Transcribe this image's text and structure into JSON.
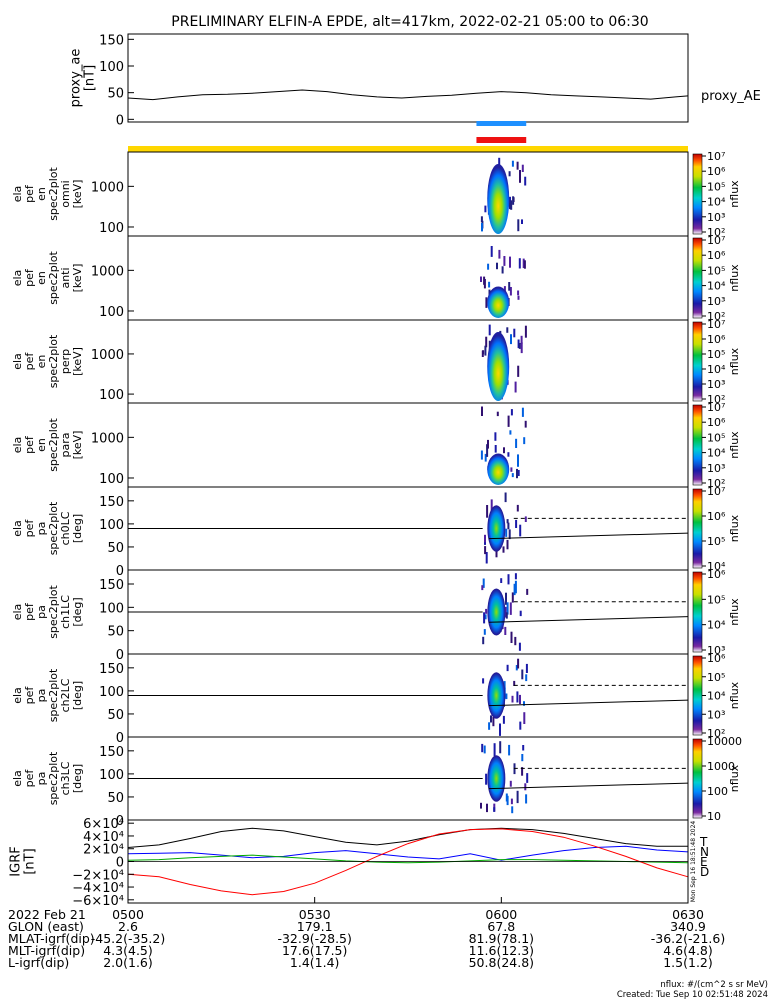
{
  "title": "PRELIMINARY ELFIN-A EPDE, alt=417km, 2022-02-21 05:00 to 06:30",
  "chart_data": [
    {
      "type": "line",
      "panel": "proxy_ae",
      "ylabel_lines": [
        "proxy_ae",
        "[nT]"
      ],
      "yticks": [
        "0",
        "50",
        "100",
        "150"
      ],
      "ylim": [
        -5,
        160
      ],
      "series": [
        {
          "name": "proxy_AE",
          "x": [
            0,
            4,
            8,
            12,
            16,
            20,
            24,
            28,
            32,
            36,
            40,
            44,
            48,
            52,
            56,
            60,
            64,
            68,
            72,
            76,
            80,
            84,
            88,
            90
          ],
          "values": [
            40,
            37,
            42,
            46,
            47,
            49,
            52,
            55,
            52,
            46,
            42,
            40,
            43,
            45,
            49,
            52,
            50,
            46,
            44,
            42,
            40,
            38,
            42,
            44
          ]
        }
      ]
    },
    {
      "type": "heatmap",
      "panel": "energy_spectrograms",
      "x_range_minutes": [
        0,
        90
      ],
      "panels": [
        {
          "ylabel_lines": [
            "ela",
            "pef",
            "en",
            "spec2plot",
            "omni",
            "[keV]"
          ],
          "yticks": [
            "100",
            "1000"
          ],
          "ylim": [
            60,
            7000
          ],
          "colorbar_label": "nflux",
          "colorbar_ticks": [
            "10²",
            "10³",
            "10⁴",
            "10⁵",
            "10⁶",
            "10⁷"
          ]
        },
        {
          "ylabel_lines": [
            "ela",
            "pef",
            "en",
            "spec2plot",
            "anti",
            "[keV]"
          ],
          "yticks": [
            "100",
            "1000"
          ],
          "ylim": [
            60,
            7000
          ],
          "colorbar_label": "nflux",
          "colorbar_ticks": [
            "10²",
            "10³",
            "10⁴",
            "10⁵",
            "10⁶",
            "10⁷"
          ]
        },
        {
          "ylabel_lines": [
            "ela",
            "pef",
            "en",
            "spec2plot",
            "perp",
            "[keV]"
          ],
          "yticks": [
            "100",
            "1000"
          ],
          "ylim": [
            60,
            7000
          ],
          "colorbar_label": "nflux",
          "colorbar_ticks": [
            "10²",
            "10³",
            "10⁴",
            "10⁵",
            "10⁶",
            "10⁷"
          ]
        },
        {
          "ylabel_lines": [
            "ela",
            "pef",
            "en",
            "spec2plot",
            "para",
            "[keV]"
          ],
          "yticks": [
            "100",
            "1000"
          ],
          "ylim": [
            60,
            7000
          ],
          "colorbar_label": "nflux",
          "colorbar_ticks": [
            "10²",
            "10³",
            "10⁴",
            "10⁵",
            "10⁶",
            "10⁷"
          ]
        }
      ]
    },
    {
      "type": "heatmap",
      "panel": "pitch_angle_spectrograms",
      "x_range_minutes": [
        0,
        90
      ],
      "panels": [
        {
          "ylabel_lines": [
            "ela",
            "pef",
            "pa",
            "spec2plot",
            "ch0LC",
            "[deg]"
          ],
          "yticks": [
            "0",
            "50",
            "100",
            "150"
          ],
          "ylim": [
            0,
            180
          ],
          "colorbar_label": "nflux",
          "colorbar_ticks": [
            "10⁴",
            "10⁵",
            "10⁶",
            "10⁷"
          ]
        },
        {
          "ylabel_lines": [
            "ela",
            "pef",
            "pa",
            "spec2plot",
            "ch1LC",
            "[deg]"
          ],
          "yticks": [
            "0",
            "50",
            "100",
            "150"
          ],
          "ylim": [
            0,
            180
          ],
          "colorbar_label": "nflux",
          "colorbar_ticks": [
            "10³",
            "10⁴",
            "10⁵",
            "10⁶"
          ]
        },
        {
          "ylabel_lines": [
            "ela",
            "pef",
            "pa",
            "spec2plot",
            "ch2LC",
            "[deg]"
          ],
          "yticks": [
            "0",
            "50",
            "100",
            "150"
          ],
          "ylim": [
            0,
            180
          ],
          "colorbar_label": "nflux",
          "colorbar_ticks": [
            "10²",
            "10³",
            "10⁴",
            "10⁵",
            "10⁶"
          ]
        },
        {
          "ylabel_lines": [
            "ela",
            "pef",
            "pa",
            "spec2plot",
            "ch3LC",
            "[deg]"
          ],
          "yticks": [
            "0",
            "50",
            "100",
            "150"
          ],
          "ylim": [
            0,
            180
          ],
          "colorbar_label": "nflux",
          "colorbar_ticks": [
            "10",
            "100",
            "1000",
            "10000"
          ]
        }
      ]
    },
    {
      "type": "line",
      "panel": "igrf",
      "ylabel_lines": [
        "IGRF",
        "[nT]"
      ],
      "yticks": [
        "−6×10⁴",
        "−4×10⁴",
        "−2×10⁴",
        "0",
        "2×10⁴",
        "4×10⁴",
        "6×10⁴"
      ],
      "ylim": [
        -65000,
        65000
      ],
      "x": [
        0,
        5,
        10,
        15,
        20,
        25,
        30,
        35,
        40,
        45,
        50,
        55,
        60,
        65,
        70,
        75,
        80,
        85,
        90
      ],
      "series": [
        {
          "name": "T",
          "color": "#000000",
          "values": [
            22000,
            26000,
            36000,
            47000,
            52000,
            48000,
            39000,
            30000,
            26000,
            32000,
            42000,
            50000,
            52000,
            50000,
            44000,
            36000,
            28000,
            24000,
            24000
          ]
        },
        {
          "name": "N",
          "color": "#0000ff",
          "values": [
            12000,
            13000,
            14000,
            10000,
            6000,
            8000,
            14000,
            17000,
            12000,
            7000,
            4000,
            12000,
            2000,
            10000,
            17000,
            22000,
            24000,
            18000,
            15000
          ]
        },
        {
          "name": "E",
          "color": "#00aa00",
          "values": [
            2000,
            3000,
            6000,
            8000,
            10000,
            7000,
            4000,
            1000,
            -1000,
            -2000,
            -1000,
            1000,
            3000,
            3000,
            2000,
            1000,
            0,
            -1000,
            -2000
          ]
        },
        {
          "name": "D",
          "color": "#ff0000",
          "values": [
            -20000,
            -24000,
            -36000,
            -46000,
            -52000,
            -47000,
            -34000,
            -14000,
            8000,
            28000,
            43000,
            50000,
            51000,
            47000,
            38000,
            24000,
            8000,
            -10000,
            -24000
          ]
        }
      ],
      "side_stamp": "Mon Sep 16 18:51:48 2024"
    }
  ],
  "markers": {
    "blue_bar_color": "#1e90ff",
    "red_bar_color": "#ee1111",
    "yellow_bar_color": "#ffd700",
    "bars_x_range_minutes": [
      56,
      64
    ]
  },
  "axis_info": {
    "row_labels": [
      "2022 Feb 21",
      "GLON (east)",
      "MLAT-igrf(dip)",
      "MLT-igrf(dip)",
      "L-igrf(dip)"
    ],
    "columns": [
      {
        "time": "0500",
        "glon": "2.6",
        "mlat": "-45.2(-35.2)",
        "mlt": "4.3(4.5)",
        "l": "2.0(1.6)"
      },
      {
        "time": "0530",
        "glon": "179.1",
        "mlat": "-32.9(-28.5)",
        "mlt": "17.6(17.5)",
        "l": "1.4(1.4)"
      },
      {
        "time": "0600",
        "glon": "67.8",
        "mlat": "81.9(78.1)",
        "mlt": "11.6(12.3)",
        "l": "50.8(24.8)"
      },
      {
        "time": "0630",
        "glon": "340.9",
        "mlat": "-36.2(-21.6)",
        "mlt": "4.6(4.8)",
        "l": "1.5(1.2)"
      }
    ]
  },
  "footer": {
    "units_note": "nflux: #/(cm^2 s sr MeV)",
    "created_note": "Created: Tue Sep 10 02:51:48 2024"
  }
}
